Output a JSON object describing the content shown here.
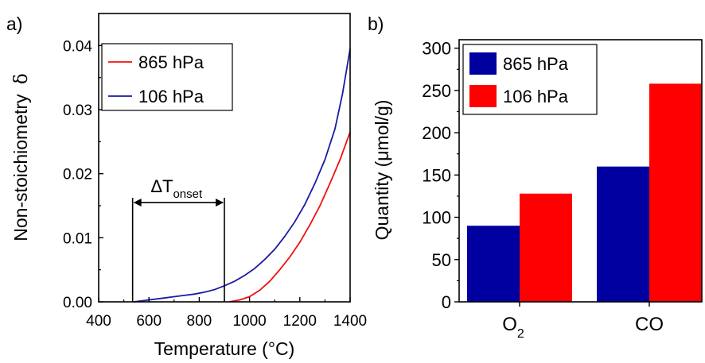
{
  "colors": {
    "red": "#f01010",
    "blue": "#1a1aa6",
    "bar_blue": "#0000a0",
    "bar_red": "#ff0000"
  },
  "chart_data": [
    {
      "type": "line",
      "panel_label": "a)",
      "xlabel": "Temperature (°C)",
      "ylabel_text": "Non-stoichiometry",
      "ylabel_symbol": "δ",
      "xlim": [
        400,
        1400
      ],
      "ylim": [
        0,
        0.045
      ],
      "xticks": [
        "400",
        "600",
        "800",
        "1000",
        "1200",
        "1400"
      ],
      "yticks": [
        "0.00",
        "0.01",
        "0.02",
        "0.03",
        "0.04"
      ],
      "legend_position": "top-left",
      "series": [
        {
          "name": "865 hPa",
          "color": "#f01010",
          "x": [
            920,
            960,
            1000,
            1040,
            1080,
            1120,
            1160,
            1200,
            1240,
            1280,
            1320,
            1360,
            1400
          ],
          "y": [
            0.0,
            0.0003,
            0.0008,
            0.0018,
            0.0032,
            0.005,
            0.007,
            0.0093,
            0.012,
            0.015,
            0.0185,
            0.0222,
            0.0265
          ]
        },
        {
          "name": "106 hPa",
          "color": "#1a1aa6",
          "x": [
            540,
            580,
            620,
            660,
            700,
            740,
            780,
            820,
            860,
            900,
            940,
            980,
            1020,
            1060,
            1100,
            1140,
            1180,
            1220,
            1260,
            1300,
            1340,
            1370,
            1400
          ],
          "y": [
            0.0,
            0.0002,
            0.0004,
            0.0006,
            0.0008,
            0.001,
            0.0012,
            0.0015,
            0.0019,
            0.0025,
            0.0032,
            0.0041,
            0.0052,
            0.0066,
            0.0082,
            0.0102,
            0.0125,
            0.0152,
            0.0185,
            0.0222,
            0.027,
            0.0325,
            0.0395
          ]
        }
      ],
      "annotation": {
        "label_main": "ΔT",
        "label_sub": "onset",
        "x_start": 535,
        "x_end": 900,
        "y_level": 0.0155
      }
    },
    {
      "type": "bar",
      "panel_label": "b)",
      "ylabel": "Quantity (μmol/g)",
      "ylim": [
        0,
        310
      ],
      "yticks": [
        "0",
        "50",
        "100",
        "150",
        "200",
        "250",
        "300"
      ],
      "categories": [
        {
          "main": "O",
          "sub": "2"
        },
        {
          "main": "CO",
          "sub": ""
        }
      ],
      "legend_position": "top-left",
      "series": [
        {
          "name": "865 hPa",
          "color": "#0000a0",
          "values": [
            90,
            160
          ]
        },
        {
          "name": "106 hPa",
          "color": "#ff0000",
          "values": [
            128,
            258
          ]
        }
      ]
    }
  ]
}
